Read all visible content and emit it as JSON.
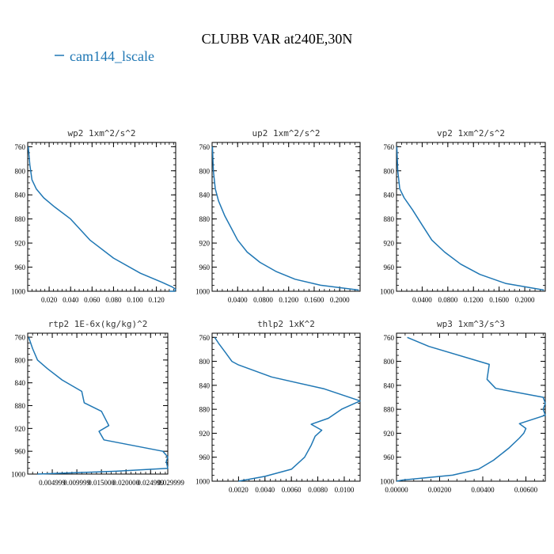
{
  "title": "CLUBB VAR at240E,30N",
  "legend": {
    "label": "cam144_lscale",
    "color": "#1f77b4"
  },
  "chart_data": [
    {
      "type": "line",
      "title": "wp2  1xm^2/s^2",
      "xlim": [
        0.0,
        0.138
      ],
      "ylim": [
        1000,
        753
      ],
      "xticks": [
        0.02,
        0.04,
        0.06,
        0.08,
        0.1,
        0.12
      ],
      "xtick_labels": [
        "0.020",
        "0.040",
        "0.060",
        "0.080",
        "0.100",
        "0.120"
      ],
      "yticks": [
        760,
        800,
        840,
        880,
        920,
        960,
        1000
      ],
      "ytick_labels": [
        "760",
        "800",
        "840",
        "880",
        "920",
        "960",
        "1000"
      ],
      "series": [
        {
          "name": "cam144_lscale",
          "x": [
            0.0005,
            0.002,
            0.004,
            0.008,
            0.015,
            0.025,
            0.04,
            0.058,
            0.08,
            0.105,
            0.125,
            0.135,
            0.138,
            0.137,
            0.132
          ],
          "y": [
            760,
            790,
            815,
            830,
            845,
            860,
            880,
            915,
            945,
            970,
            985,
            993,
            997,
            1000,
            1000
          ]
        }
      ]
    },
    {
      "type": "line",
      "title": "up2  1xm^2/s^2",
      "xlim": [
        0.0,
        0.232
      ],
      "ylim": [
        1000,
        753
      ],
      "xticks": [
        0.04,
        0.08,
        0.12,
        0.16,
        0.2
      ],
      "xtick_labels": [
        "0.0400",
        "0.0800",
        "0.1200",
        "0.1600",
        "0.2000"
      ],
      "yticks": [
        760,
        800,
        840,
        880,
        920,
        960,
        1000
      ],
      "ytick_labels": [
        "760",
        "800",
        "840",
        "880",
        "920",
        "960",
        "1000"
      ],
      "series": [
        {
          "name": "cam144_lscale",
          "x": [
            0.0005,
            0.002,
            0.005,
            0.01,
            0.02,
            0.03,
            0.04,
            0.055,
            0.075,
            0.1,
            0.13,
            0.17,
            0.23
          ],
          "y": [
            760,
            800,
            830,
            850,
            875,
            895,
            915,
            935,
            952,
            967,
            980,
            990,
            998
          ]
        }
      ]
    },
    {
      "type": "line",
      "title": "vp2  1xm^2/s^2",
      "xlim": [
        0.0,
        0.232
      ],
      "ylim": [
        1000,
        753
      ],
      "xticks": [
        0.04,
        0.08,
        0.12,
        0.16,
        0.2
      ],
      "xtick_labels": [
        "0.0400",
        "0.0800",
        "0.1200",
        "0.1600",
        "0.2000"
      ],
      "yticks": [
        760,
        800,
        840,
        880,
        920,
        960,
        1000
      ],
      "ytick_labels": [
        "760",
        "800",
        "840",
        "880",
        "920",
        "960",
        "1000"
      ],
      "series": [
        {
          "name": "cam144_lscale",
          "x": [
            0.0005,
            0.002,
            0.005,
            0.012,
            0.025,
            0.04,
            0.055,
            0.075,
            0.1,
            0.13,
            0.17,
            0.23
          ],
          "y": [
            760,
            800,
            830,
            845,
            865,
            890,
            915,
            935,
            955,
            972,
            987,
            998
          ]
        }
      ]
    },
    {
      "type": "line",
      "title": "rtp2  1E-6x(kg/kg)^2",
      "xlim": [
        0.0,
        0.0285
      ],
      "ylim": [
        1000,
        753
      ],
      "xticks": [
        0.005,
        0.01,
        0.015,
        0.02,
        0.025
      ],
      "xtick_labels": [
        "0.004999",
        "0.009999",
        "0.015000",
        "0.020000",
        "0.024999"
      ],
      "x_max_label": "0.029999",
      "yticks": [
        760,
        800,
        840,
        880,
        920,
        960,
        1000
      ],
      "ytick_labels": [
        "760",
        "800",
        "840",
        "880",
        "920",
        "960",
        "1000"
      ],
      "series": [
        {
          "name": "cam144_lscale",
          "x": [
            0.0002,
            0.001,
            0.002,
            0.004,
            0.007,
            0.011,
            0.0115,
            0.015,
            0.0165,
            0.0145,
            0.0155,
            0.0275,
            0.0285,
            0.0282,
            0.0285,
            0.018,
            0.008,
            0.002
          ],
          "y": [
            760,
            780,
            800,
            815,
            835,
            855,
            875,
            890,
            915,
            925,
            940,
            960,
            970,
            978,
            990,
            995,
            998,
            1000
          ]
        }
      ]
    },
    {
      "type": "line",
      "title": "thlp2  1xK^2",
      "xlim": [
        0.0,
        0.0112
      ],
      "ylim": [
        1000,
        753
      ],
      "xticks": [
        0.002,
        0.004,
        0.006,
        0.008,
        0.01
      ],
      "xtick_labels": [
        "0.0020",
        "0.0040",
        "0.0060",
        "0.0080",
        "0.0100"
      ],
      "yticks": [
        760,
        800,
        840,
        880,
        920,
        960,
        1000
      ],
      "ytick_labels": [
        "760",
        "800",
        "840",
        "880",
        "920",
        "960",
        "1000"
      ],
      "series": [
        {
          "name": "cam144_lscale",
          "x": [
            0.0002,
            0.0005,
            0.001,
            0.0015,
            0.002,
            0.0045,
            0.0085,
            0.0112,
            0.0098,
            0.0088,
            0.0075,
            0.0083,
            0.0078,
            0.0075,
            0.007,
            0.006,
            0.004,
            0.002
          ],
          "y": [
            760,
            770,
            785,
            800,
            806,
            826,
            846,
            866,
            880,
            895,
            905,
            915,
            925,
            940,
            960,
            980,
            992,
            1000
          ]
        }
      ]
    },
    {
      "type": "line",
      "title": "wp3  1xm^3/s^3",
      "xlim": [
        0.0,
        0.0069
      ],
      "ylim": [
        1000,
        753
      ],
      "xticks": [
        0.0,
        0.002,
        0.004,
        0.006
      ],
      "xtick_labels": [
        "0.00000",
        "0.00200",
        "0.00400",
        "0.00600"
      ],
      "yticks": [
        760,
        800,
        840,
        880,
        920,
        960,
        1000
      ],
      "ytick_labels": [
        "760",
        "800",
        "840",
        "880",
        "920",
        "960",
        "1000"
      ],
      "series": [
        {
          "name": "cam144_lscale",
          "x": [
            0.0005,
            0.0015,
            0.0043,
            0.0042,
            0.0046,
            0.0068,
            0.0069,
            0.0068,
            0.0069,
            0.0057,
            0.006,
            0.0059,
            0.0057,
            0.0052,
            0.0045,
            0.0038,
            0.0026,
            0.0003,
            0.0
          ],
          "y": [
            760,
            775,
            805,
            830,
            845,
            860,
            870,
            880,
            890,
            904,
            912,
            920,
            928,
            945,
            965,
            980,
            990,
            998,
            1000
          ]
        }
      ]
    }
  ]
}
